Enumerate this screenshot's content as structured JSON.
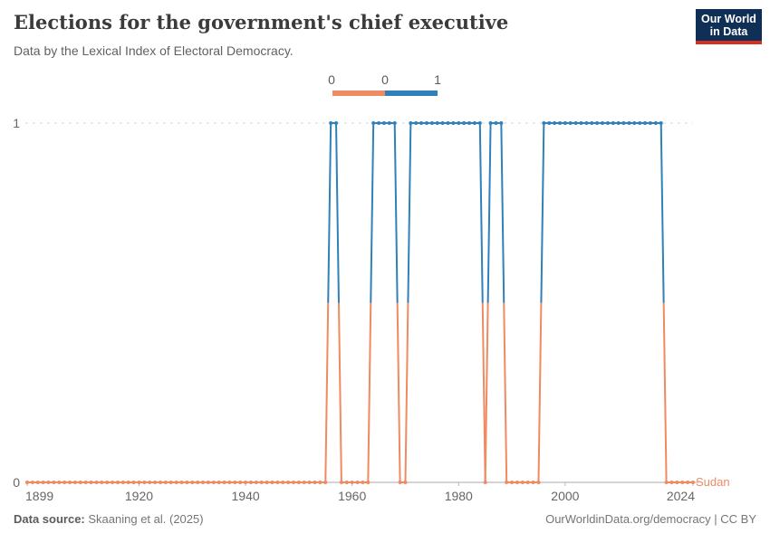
{
  "header": {
    "title": "Elections for the government's chief executive",
    "subtitle": "Data by the Lexical Index of Electoral Democracy.",
    "logo": {
      "line1": "Our World",
      "line2": "in Data"
    }
  },
  "legend": {
    "tick_labels": [
      "0",
      "0",
      "1"
    ],
    "bins": [
      {
        "value": 0,
        "color": "#ef8a62"
      },
      {
        "value": 1,
        "color": "#3080b9"
      }
    ]
  },
  "chart_data": {
    "type": "line",
    "title": "Elections for the government's chief executive",
    "entity": "Sudan",
    "ylabel": "",
    "xlabel": "",
    "x_range": [
      1899,
      2024
    ],
    "ylim": [
      0,
      1
    ],
    "y_ticks": [
      0,
      1
    ],
    "x_ticks": [
      1899,
      1920,
      1940,
      1960,
      1980,
      2000,
      2024
    ],
    "grid": "dashed line at y=1 only",
    "legend_position": "top-center",
    "colors": {
      "value0": "#ef8a62",
      "value1": "#3080b9"
    },
    "segments": [
      {
        "start": 1899,
        "end": 1955,
        "value": 0
      },
      {
        "start": 1956,
        "end": 1957,
        "value": 1
      },
      {
        "start": 1958,
        "end": 1963,
        "value": 0
      },
      {
        "start": 1964,
        "end": 1968,
        "value": 1
      },
      {
        "start": 1969,
        "end": 1970,
        "value": 0
      },
      {
        "start": 1971,
        "end": 1984,
        "value": 1
      },
      {
        "start": 1985,
        "end": 1985,
        "value": 0
      },
      {
        "start": 1986,
        "end": 1988,
        "value": 1
      },
      {
        "start": 1989,
        "end": 1995,
        "value": 0
      },
      {
        "start": 1996,
        "end": 2018,
        "value": 1
      },
      {
        "start": 2019,
        "end": 2024,
        "value": 0
      }
    ]
  },
  "footer": {
    "source_label": "Data source:",
    "source": "Skaaning et al. (2025)",
    "link": "OurWorldinData.org/democracy",
    "separator": " | ",
    "license": "CC BY"
  }
}
